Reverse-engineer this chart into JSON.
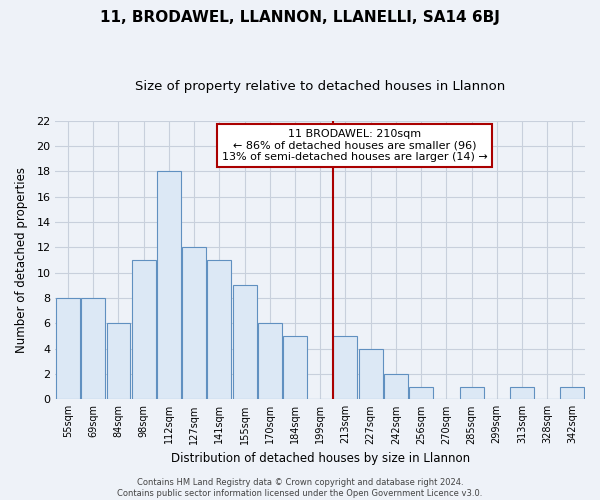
{
  "title": "11, BRODAWEL, LLANNON, LLANELLI, SA14 6BJ",
  "subtitle": "Size of property relative to detached houses in Llannon",
  "xlabel": "Distribution of detached houses by size in Llannon",
  "ylabel": "Number of detached properties",
  "bin_labels": [
    "55sqm",
    "69sqm",
    "84sqm",
    "98sqm",
    "112sqm",
    "127sqm",
    "141sqm",
    "155sqm",
    "170sqm",
    "184sqm",
    "199sqm",
    "213sqm",
    "227sqm",
    "242sqm",
    "256sqm",
    "270sqm",
    "285sqm",
    "299sqm",
    "313sqm",
    "328sqm",
    "342sqm"
  ],
  "bar_heights": [
    8,
    8,
    6,
    11,
    18,
    12,
    11,
    9,
    6,
    5,
    0,
    5,
    4,
    2,
    1,
    0,
    1,
    0,
    1,
    0,
    1
  ],
  "bar_color": "#dce8f5",
  "bar_edge_color": "#6090c0",
  "vline_x_index": 11,
  "vline_color": "#aa0000",
  "ylim": [
    0,
    22
  ],
  "yticks": [
    0,
    2,
    4,
    6,
    8,
    10,
    12,
    14,
    16,
    18,
    20,
    22
  ],
  "annotation_title": "11 BRODAWEL: 210sqm",
  "annotation_line1": "← 86% of detached houses are smaller (96)",
  "annotation_line2": "13% of semi-detached houses are larger (14) →",
  "footer_line1": "Contains HM Land Registry data © Crown copyright and database right 2024.",
  "footer_line2": "Contains public sector information licensed under the Open Government Licence v3.0.",
  "bg_color": "#eef2f8",
  "plot_bg_color": "#eef2f8",
  "grid_color": "#c8d0dc",
  "title_fontsize": 11,
  "subtitle_fontsize": 9.5
}
